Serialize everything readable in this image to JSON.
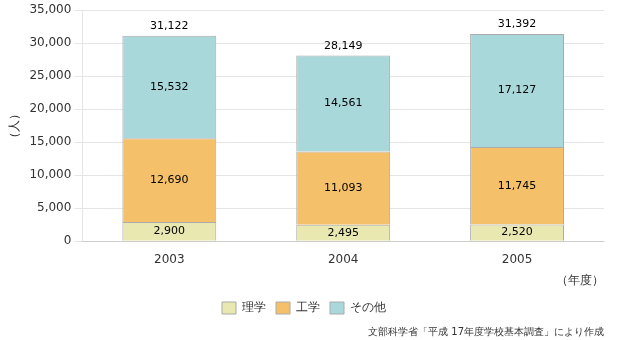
{
  "chart_data": {
    "type": "bar",
    "stacked": true,
    "categories": [
      "2003",
      "2004",
      "2005"
    ],
    "series": [
      {
        "name": "理学",
        "color": "#e8e8b0",
        "values": [
          2900,
          2495,
          2520
        ],
        "value_labels": [
          "2,900",
          "2,495",
          "2,520"
        ]
      },
      {
        "name": "工学",
        "color": "#f5c06a",
        "values": [
          12690,
          11093,
          11745
        ],
        "value_labels": [
          "12,690",
          "11,093",
          "11,745"
        ]
      },
      {
        "name": "その他",
        "color": "#a8d8da",
        "values": [
          15532,
          14561,
          17127
        ],
        "value_labels": [
          "15,532",
          "14,561",
          "17,127"
        ]
      }
    ],
    "totals": [
      31122,
      28149,
      31392
    ],
    "total_labels": [
      "31,122",
      "28,149",
      "31,392"
    ],
    "data_labels": true,
    "xlabel": "（年度）",
    "ylabel": "（人）",
    "source": "文部科学省「平成 17年度学校基本調査」により作成",
    "ylim": [
      0,
      35000
    ],
    "yticks": [
      0,
      {
        "value": 5000,
        "label": "5,000"
      },
      {
        "value": 10000,
        "label": "10,000"
      },
      {
        "value": 15000,
        "label": "15,000"
      },
      {
        "value": 20000,
        "label": "20,000"
      },
      {
        "value": 25000,
        "label": "25,000"
      },
      {
        "value": 30000,
        "label": "30,000"
      },
      {
        "value": 35000,
        "label": "35,000"
      }
    ],
    "grid": true,
    "legend": "bottom"
  }
}
